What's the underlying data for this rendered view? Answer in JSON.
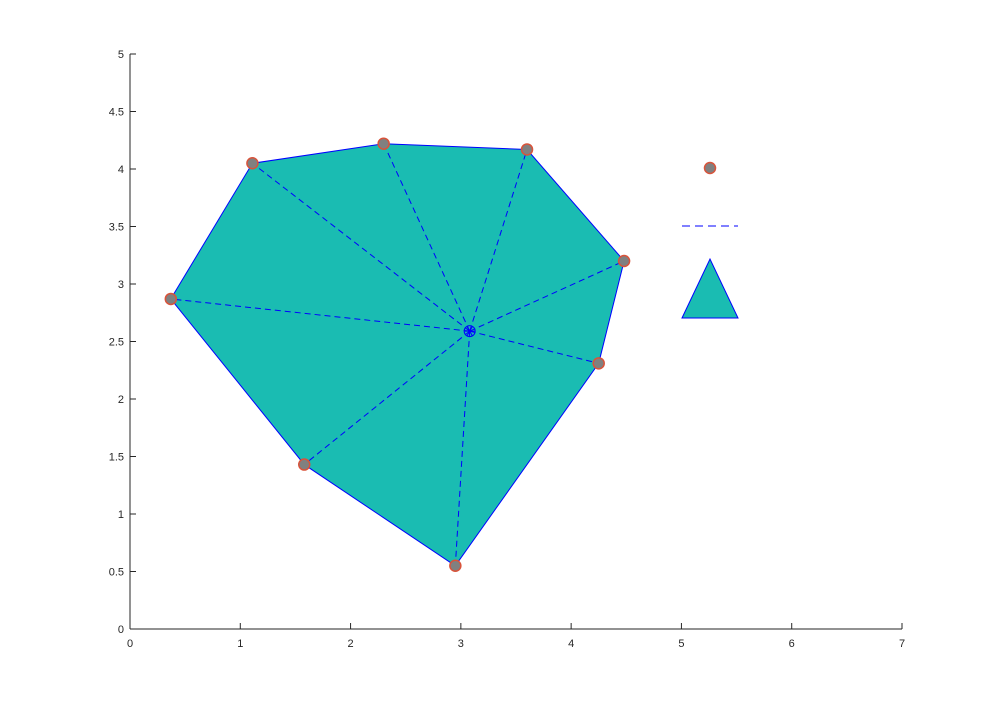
{
  "chart_data": {
    "type": "scatter",
    "title": "",
    "xlabel": "",
    "ylabel": "",
    "xlim": [
      0,
      7
    ],
    "ylim": [
      0,
      5
    ],
    "x_ticks": [
      "0",
      "1",
      "2",
      "3",
      "4",
      "5",
      "6",
      "7"
    ],
    "y_ticks": [
      "0",
      "0.5",
      "1",
      "1.5",
      "2",
      "2.5",
      "3",
      "3.5",
      "4",
      "4.5",
      "5"
    ],
    "grid": false,
    "center_point": {
      "x": 3.08,
      "y": 2.59
    },
    "hull_points": [
      {
        "x": 0.37,
        "y": 2.87
      },
      {
        "x": 1.11,
        "y": 4.05
      },
      {
        "x": 2.3,
        "y": 4.22
      },
      {
        "x": 3.6,
        "y": 4.17
      },
      {
        "x": 4.48,
        "y": 3.2
      },
      {
        "x": 4.25,
        "y": 2.31
      },
      {
        "x": 2.95,
        "y": 0.55
      },
      {
        "x": 1.58,
        "y": 1.43
      }
    ],
    "legend": {
      "placement": "right of plot area",
      "entries": [
        {
          "marker": "circle",
          "label": ""
        },
        {
          "marker": "dashed-line",
          "label": ""
        },
        {
          "marker": "filled-triangle",
          "label": ""
        }
      ]
    },
    "colors": {
      "fill": "#1abcb2",
      "edge": "#0000ff",
      "marker_fill": "#808080",
      "marker_edge": "#d9533a",
      "axis": "#262626"
    }
  }
}
